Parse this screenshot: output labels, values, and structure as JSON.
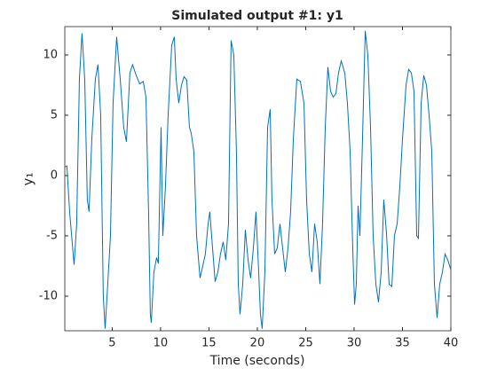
{
  "chart_data": {
    "type": "line",
    "title": "Simulated output #1: y1",
    "xlabel": "Time (seconds)",
    "ylabel": "y₁",
    "x": [
      0.1,
      0.32,
      0.6,
      1.06,
      1.33,
      1.61,
      1.88,
      2.16,
      2.43,
      2.61,
      2.89,
      3.26,
      3.53,
      3.81,
      4.08,
      4.27,
      4.54,
      4.82,
      5.09,
      5.46,
      5.83,
      6.19,
      6.47,
      6.83,
      7.11,
      7.48,
      7.84,
      8.21,
      8.49,
      8.76,
      8.94,
      9.04,
      9.31,
      9.59,
      9.77,
      10.05,
      10.23,
      10.5,
      10.78,
      11.15,
      11.42,
      11.61,
      11.88,
      12.16,
      12.43,
      12.71,
      12.98,
      13.17,
      13.44,
      13.72,
      14.08,
      14.36,
      14.63,
      14.91,
      15.09,
      15.37,
      15.64,
      15.92,
      16.19,
      16.47,
      16.74,
      17.02,
      17.29,
      17.57,
      17.84,
      18.03,
      18.21,
      18.49,
      18.76,
      19.04,
      19.31,
      19.59,
      19.86,
      20.14,
      20.32,
      20.5,
      20.78,
      21.06,
      21.33,
      21.51,
      21.79,
      22.06,
      22.34,
      22.61,
      22.89,
      23.17,
      23.44,
      23.72,
      24.08,
      24.45,
      24.82,
      25.09,
      25.37,
      25.64,
      25.92,
      26.19,
      26.47,
      26.74,
      27.02,
      27.29,
      27.57,
      27.84,
      28.12,
      28.39,
      28.67,
      29.04,
      29.31,
      29.59,
      29.86,
      30.05,
      30.23,
      30.41,
      30.6,
      30.87,
      31.15,
      31.42,
      31.7,
      31.97,
      32.25,
      32.52,
      32.8,
      33.07,
      33.35,
      33.62,
      33.9,
      34.17,
      34.45,
      34.72,
      35.0,
      35.37,
      35.64,
      35.92,
      36.19,
      36.47,
      36.65,
      36.93,
      37.2,
      37.48,
      37.75,
      38.03,
      38.3,
      38.58,
      38.85,
      39.13,
      39.4,
      39.68,
      40
    ],
    "series": [
      {
        "name": "y1",
        "color": "#0072bd",
        "values": [
          0.7,
          0.8,
          -3,
          -7.4,
          -4,
          8,
          11.8,
          8,
          -2,
          -3,
          3,
          8,
          9.2,
          5,
          -10,
          -12.7,
          -9,
          -5,
          6,
          11.5,
          8,
          4,
          2.8,
          8.5,
          9.2,
          8.3,
          7.6,
          7.8,
          6.5,
          -3,
          -11.5,
          -12.2,
          -8,
          -6.8,
          -7.3,
          4,
          -5,
          -1,
          5,
          10.8,
          11.5,
          8,
          6,
          7.5,
          8.2,
          7.9,
          4,
          3.5,
          2,
          -5,
          -8.5,
          -7.5,
          -6.5,
          -4,
          -3,
          -6,
          -8.8,
          -8,
          -6.5,
          -5.5,
          -7,
          -4,
          11.2,
          10,
          2,
          -9,
          -11.5,
          -9,
          -4.5,
          -7,
          -8.5,
          -6,
          -3,
          -8,
          -11.5,
          -12.7,
          -8,
          4,
          5.5,
          -2,
          -6.5,
          -6,
          -4,
          -6,
          -8,
          -6,
          -3,
          3,
          8,
          7.8,
          6,
          -2,
          -6.5,
          -8,
          -4,
          -5.5,
          -9,
          -4,
          4,
          9,
          7,
          6.5,
          6.8,
          8.5,
          9.5,
          8.5,
          6,
          2,
          -6,
          -10.7,
          -9,
          -2.5,
          -5,
          3,
          12,
          10,
          4,
          -5,
          -9,
          -10.5,
          -8,
          -2,
          -4.8,
          -9,
          -9.2,
          -5,
          -4,
          -1,
          3,
          7.5,
          8.8,
          8.5,
          7,
          -5,
          -5.2,
          6,
          8.3,
          7.5,
          5,
          2,
          -9,
          -11.8,
          -9,
          -8,
          -6.5,
          -7,
          -7.8
        ]
      }
    ],
    "xlim": [
      0.1,
      40
    ],
    "xticks": [
      5,
      10,
      15,
      20,
      25,
      30,
      35,
      40
    ],
    "ylim": [
      -12.87,
      12.35
    ],
    "yticks": [
      -10,
      -5,
      0,
      5,
      10
    ]
  }
}
